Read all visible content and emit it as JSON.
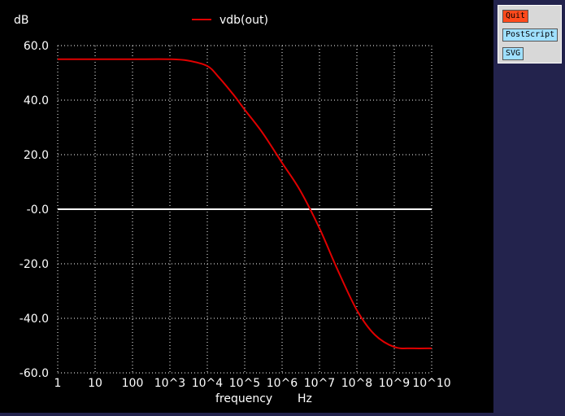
{
  "colors": {
    "background": "#000000",
    "grid": "#ffffff",
    "series": "#e00000",
    "zero_line": "#ffffff",
    "text": "#ffffff",
    "quit_button": "#ff4a1c",
    "export_button": "#9fe0ff"
  },
  "buttons": {
    "quit": "Quit",
    "postscript": "PostScript",
    "svg": "SVG"
  },
  "chart_data": {
    "type": "line",
    "ylabel": "dB",
    "xlabel": "frequency",
    "xunit": "Hz",
    "x_scale": "log10",
    "xlim": [
      1,
      10000000000
    ],
    "ylim": [
      -60,
      60
    ],
    "grid": true,
    "grid_style": "dotted",
    "legend_position": "top-center",
    "x_tick_labels": [
      "1",
      "10",
      "100",
      "10^3",
      "10^4",
      "10^5",
      "10^6",
      "10^7",
      "10^8",
      "10^9",
      "10^10"
    ],
    "y_tick_labels": [
      "60.0",
      "40.0",
      "20.0",
      "-0.0",
      "-20.0",
      "-40.0",
      "-60.0"
    ],
    "y_ticks": [
      60,
      40,
      20,
      0,
      -20,
      -40,
      -60
    ],
    "series": [
      {
        "name": "vdb(out)",
        "x": [
          1,
          10,
          100,
          1000,
          3000,
          10000,
          20000,
          50000,
          100000,
          300000,
          1000000,
          3000000,
          10000000,
          30000000,
          100000000,
          300000000,
          1000000000,
          3000000000,
          10000000000
        ],
        "y": [
          55,
          55,
          55,
          55,
          54.5,
          52.5,
          48.5,
          42,
          36.5,
          28,
          17,
          7,
          -7,
          -22,
          -37,
          -46,
          -50.5,
          -51,
          -51
        ]
      }
    ]
  }
}
